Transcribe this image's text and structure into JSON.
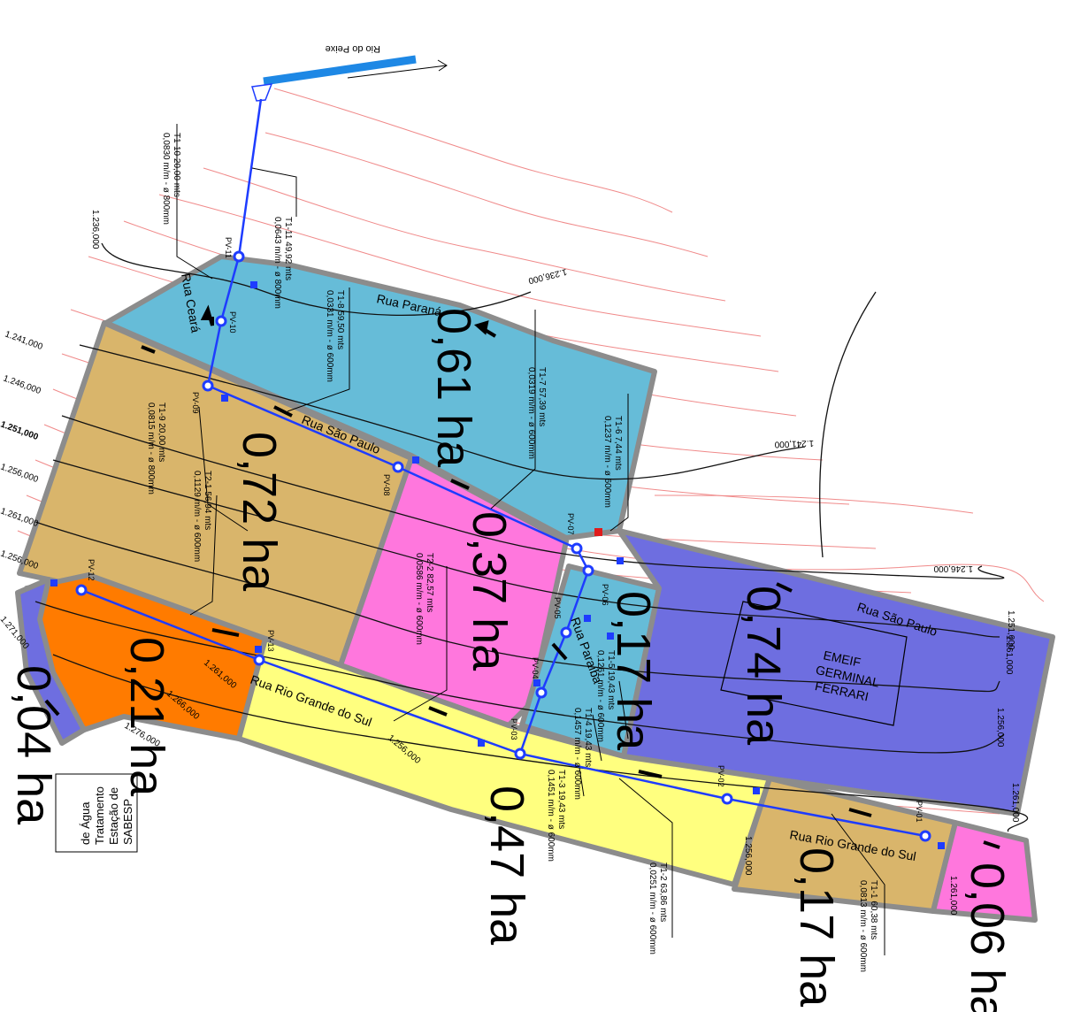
{
  "river_label": "Rio do Peixe",
  "areas": [
    {
      "id": "a061",
      "label": "0,61 ha",
      "color": "#66bcd8"
    },
    {
      "id": "a072",
      "label": "0,72 ha",
      "color": "#d9b56b"
    },
    {
      "id": "a037",
      "label": "0,37 ha",
      "color": "#ff77dd"
    },
    {
      "id": "a017a",
      "label": "0,17 ha",
      "color": "#66bcd8"
    },
    {
      "id": "a074",
      "label": "0,74 ha",
      "color": "#6e6ee0"
    },
    {
      "id": "a021",
      "label": "0,21 ha",
      "color": "#ff7b00"
    },
    {
      "id": "a004",
      "label": "0,04 ha",
      "color": "#6e6ee0"
    },
    {
      "id": "a047",
      "label": "0,47 ha",
      "color": "#ffff7f"
    },
    {
      "id": "a017b",
      "label": "0,17 ha",
      "color": "#d9b56b"
    },
    {
      "id": "a006",
      "label": "0,06 ha",
      "color": "#ff77dd"
    }
  ],
  "streets": {
    "parana": "Rua Paraná",
    "ceara": "Rua Ceará",
    "sao_paulo_1": "Rua São Paulo",
    "sao_paulo_2": "Rua São Paulo",
    "rio_grande_1": "Rua Rio Grande do Sul",
    "rio_grande_2": "Rua Rio Grande do Sul",
    "paraiba": "Rua Paraíba"
  },
  "school_label": [
    "EMEIF",
    "GERMINAL",
    "FERRARI"
  ],
  "sabesp_label": [
    "SABESP",
    "Estação de",
    "Tratamento",
    "de Água"
  ],
  "wells": [
    "PV-01",
    "PV-02",
    "PV-03",
    "PV-04",
    "PV-05",
    "PV-06",
    "PV-07",
    "PV-08",
    "PV-09",
    "PV-10",
    "PV-11",
    "PV-12",
    "PV-13"
  ],
  "segments": [
    {
      "id": "T1-1",
      "line1": "T1-1  60,38 mts",
      "line2": "0,0813 m/m - ø 600mm"
    },
    {
      "id": "T1-2",
      "line1": "T1-2  63,86 mts",
      "line2": "0,0251 m/m - ø 600mm"
    },
    {
      "id": "T1-3",
      "line1": "T1-3  19,43 mts",
      "line2": "0,1451 m/m - ø 600mm"
    },
    {
      "id": "T1-4",
      "line1": "T1-4  19,43 mts",
      "line2": "0,1457 m/m - ø 600mm"
    },
    {
      "id": "T1-5",
      "line1": "T1-5  19,43 mts",
      "line2": "0,1261 m/m - ø 600mm"
    },
    {
      "id": "T1-6",
      "line1": "T1-6  7,44 mts",
      "line2": "0,1237 m/m - ø 600mm"
    },
    {
      "id": "T1-7",
      "line1": "T1-7  57,39 mts",
      "line2": "0,0319 m/m - ø 600mm"
    },
    {
      "id": "T1-8",
      "line1": "T1-8  59,50 mts",
      "line2": "0,0331 m/m - ø 600mm"
    },
    {
      "id": "T1-9",
      "line1": "T1-9  20,00 mts",
      "line2": "0,0815 m/m - ø 800mm"
    },
    {
      "id": "T1-10",
      "line1": "T1-10  20,00 mts",
      "line2": "0,0830 m/m - ø 800mm"
    },
    {
      "id": "T1-11",
      "line1": "T1-11  49,92 mts",
      "line2": "0,0643 m/m - ø 800mm"
    },
    {
      "id": "T2-1",
      "line1": "T2-1  56,94 mts",
      "line2": "0,1129 m/m - ø 600mm"
    },
    {
      "id": "T2-2",
      "line1": "T2-2  82,57 mts",
      "line2": "0,0586 m/m - ø 600mm"
    }
  ],
  "contours": [
    "1.236,000",
    "1.236,000",
    "1.241,000",
    "1.241,000",
    "1.246,000",
    "1.246,000",
    "1.251,000",
    "1.251,000",
    "1.256,000",
    "1.256,000",
    "1.256,000",
    "1.261,000",
    "1.261,000",
    "1.261,000",
    "1.266,000",
    "1.271,000",
    "1.276,000",
    "1.261,000",
    "1.256,000",
    "1.256,000",
    "1.261,000"
  ]
}
